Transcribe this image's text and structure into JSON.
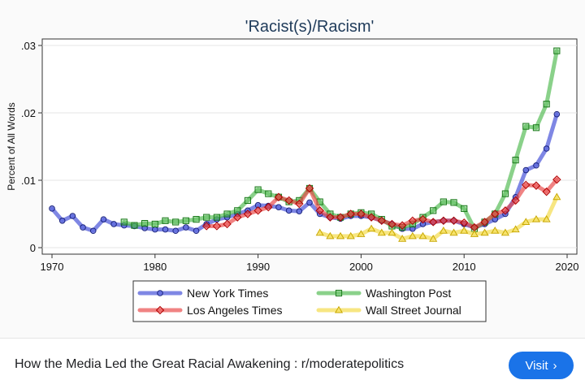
{
  "chart_data": {
    "type": "line",
    "title": "'Racist(s)/Racism'",
    "ylabel": "Percent of All Words",
    "xlabel": "",
    "xlim": [
      1970,
      2020
    ],
    "ylim": [
      0,
      0.03
    ],
    "xticks": [
      1970,
      1980,
      1990,
      2000,
      2010,
      2020
    ],
    "yticks": [
      0,
      0.01,
      0.02,
      0.03
    ],
    "ytick_labels": [
      "0",
      ".01",
      ".02",
      ".03"
    ],
    "grid": "horizontal",
    "legend": "bottom",
    "series": [
      {
        "name": "New York Times",
        "color": "#3a47d6",
        "marker": "circle",
        "x": [
          1970,
          1971,
          1972,
          1973,
          1974,
          1975,
          1976,
          1977,
          1978,
          1979,
          1980,
          1981,
          1982,
          1983,
          1984,
          1985,
          1986,
          1987,
          1988,
          1989,
          1990,
          1991,
          1992,
          1993,
          1994,
          1995,
          1996,
          1997,
          1998,
          1999,
          2000,
          2001,
          2002,
          2003,
          2004,
          2005,
          2006,
          2007,
          2008,
          2009,
          2010,
          2011,
          2012,
          2013,
          2014,
          2015,
          2016,
          2017,
          2018,
          2019
        ],
        "y": [
          0.0058,
          0.004,
          0.0047,
          0.003,
          0.0025,
          0.0042,
          0.0035,
          0.0033,
          0.0032,
          0.0029,
          0.0027,
          0.0027,
          0.0025,
          0.003,
          0.0025,
          0.0035,
          0.0042,
          0.0045,
          0.005,
          0.0055,
          0.0063,
          0.0062,
          0.006,
          0.0055,
          0.0054,
          0.0067,
          0.005,
          0.0045,
          0.0043,
          0.0047,
          0.0047,
          0.0045,
          0.004,
          0.0035,
          0.0028,
          0.0028,
          0.0035,
          0.0038,
          0.004,
          0.004,
          0.0035,
          0.003,
          0.0035,
          0.0042,
          0.005,
          0.0075,
          0.0115,
          0.0122,
          0.0147,
          0.0198
        ]
      },
      {
        "name": "Washington Post",
        "color": "#4cb84c",
        "marker": "square",
        "x": [
          1977,
          1978,
          1979,
          1980,
          1981,
          1982,
          1983,
          1984,
          1985,
          1986,
          1987,
          1988,
          1989,
          1990,
          1991,
          1992,
          1993,
          1994,
          1995,
          1996,
          1997,
          1998,
          1999,
          2000,
          2001,
          2002,
          2003,
          2004,
          2005,
          2006,
          2007,
          2008,
          2009,
          2010,
          2011,
          2012,
          2013,
          2014,
          2015,
          2016,
          2017,
          2018,
          2019
        ],
        "y": [
          0.0038,
          0.0033,
          0.0036,
          0.0035,
          0.004,
          0.0038,
          0.004,
          0.0042,
          0.0045,
          0.0045,
          0.005,
          0.0055,
          0.007,
          0.0086,
          0.008,
          0.0075,
          0.0068,
          0.007,
          0.0088,
          0.0068,
          0.005,
          0.0045,
          0.005,
          0.0052,
          0.005,
          0.0042,
          0.0032,
          0.003,
          0.0035,
          0.0045,
          0.0055,
          0.0068,
          0.0067,
          0.0058,
          0.0028,
          0.0038,
          0.005,
          0.008,
          0.013,
          0.018,
          0.0178,
          0.0213,
          0.0292
        ]
      },
      {
        "name": "Los Angeles Times",
        "color": "#e84040",
        "marker": "diamond",
        "x": [
          1985,
          1986,
          1987,
          1988,
          1989,
          1990,
          1991,
          1992,
          1993,
          1994,
          1995,
          1996,
          1997,
          1998,
          1999,
          2000,
          2001,
          2002,
          2003,
          2004,
          2005,
          2006,
          2007,
          2008,
          2009,
          2010,
          2011,
          2012,
          2013,
          2014,
          2015,
          2016,
          2017,
          2018,
          2019
        ],
        "y": [
          0.0032,
          0.0032,
          0.0035,
          0.0045,
          0.005,
          0.0055,
          0.006,
          0.0075,
          0.007,
          0.0065,
          0.0088,
          0.0055,
          0.0045,
          0.0045,
          0.005,
          0.005,
          0.0045,
          0.004,
          0.0035,
          0.0033,
          0.004,
          0.0042,
          0.0038,
          0.004,
          0.004,
          0.0037,
          0.003,
          0.0038,
          0.005,
          0.0055,
          0.007,
          0.0093,
          0.0092,
          0.0083,
          0.0101
        ]
      },
      {
        "name": "Wall Street Journal",
        "color": "#f3d93f",
        "marker": "triangle",
        "x": [
          1996,
          1997,
          1998,
          1999,
          2000,
          2001,
          2002,
          2003,
          2004,
          2005,
          2006,
          2007,
          2008,
          2009,
          2010,
          2011,
          2012,
          2013,
          2014,
          2015,
          2016,
          2017,
          2018,
          2019
        ],
        "y": [
          0.0022,
          0.0017,
          0.0017,
          0.0017,
          0.002,
          0.0028,
          0.0022,
          0.0022,
          0.0013,
          0.0017,
          0.0017,
          0.0013,
          0.0025,
          0.0022,
          0.0025,
          0.002,
          0.0022,
          0.0025,
          0.0022,
          0.0027,
          0.0038,
          0.0042,
          0.0042,
          0.0075
        ]
      }
    ]
  },
  "footer": {
    "caption": "How the Media Led the Great Racial Awakening : r/moderatepolitics",
    "visit_label": "Visit"
  }
}
